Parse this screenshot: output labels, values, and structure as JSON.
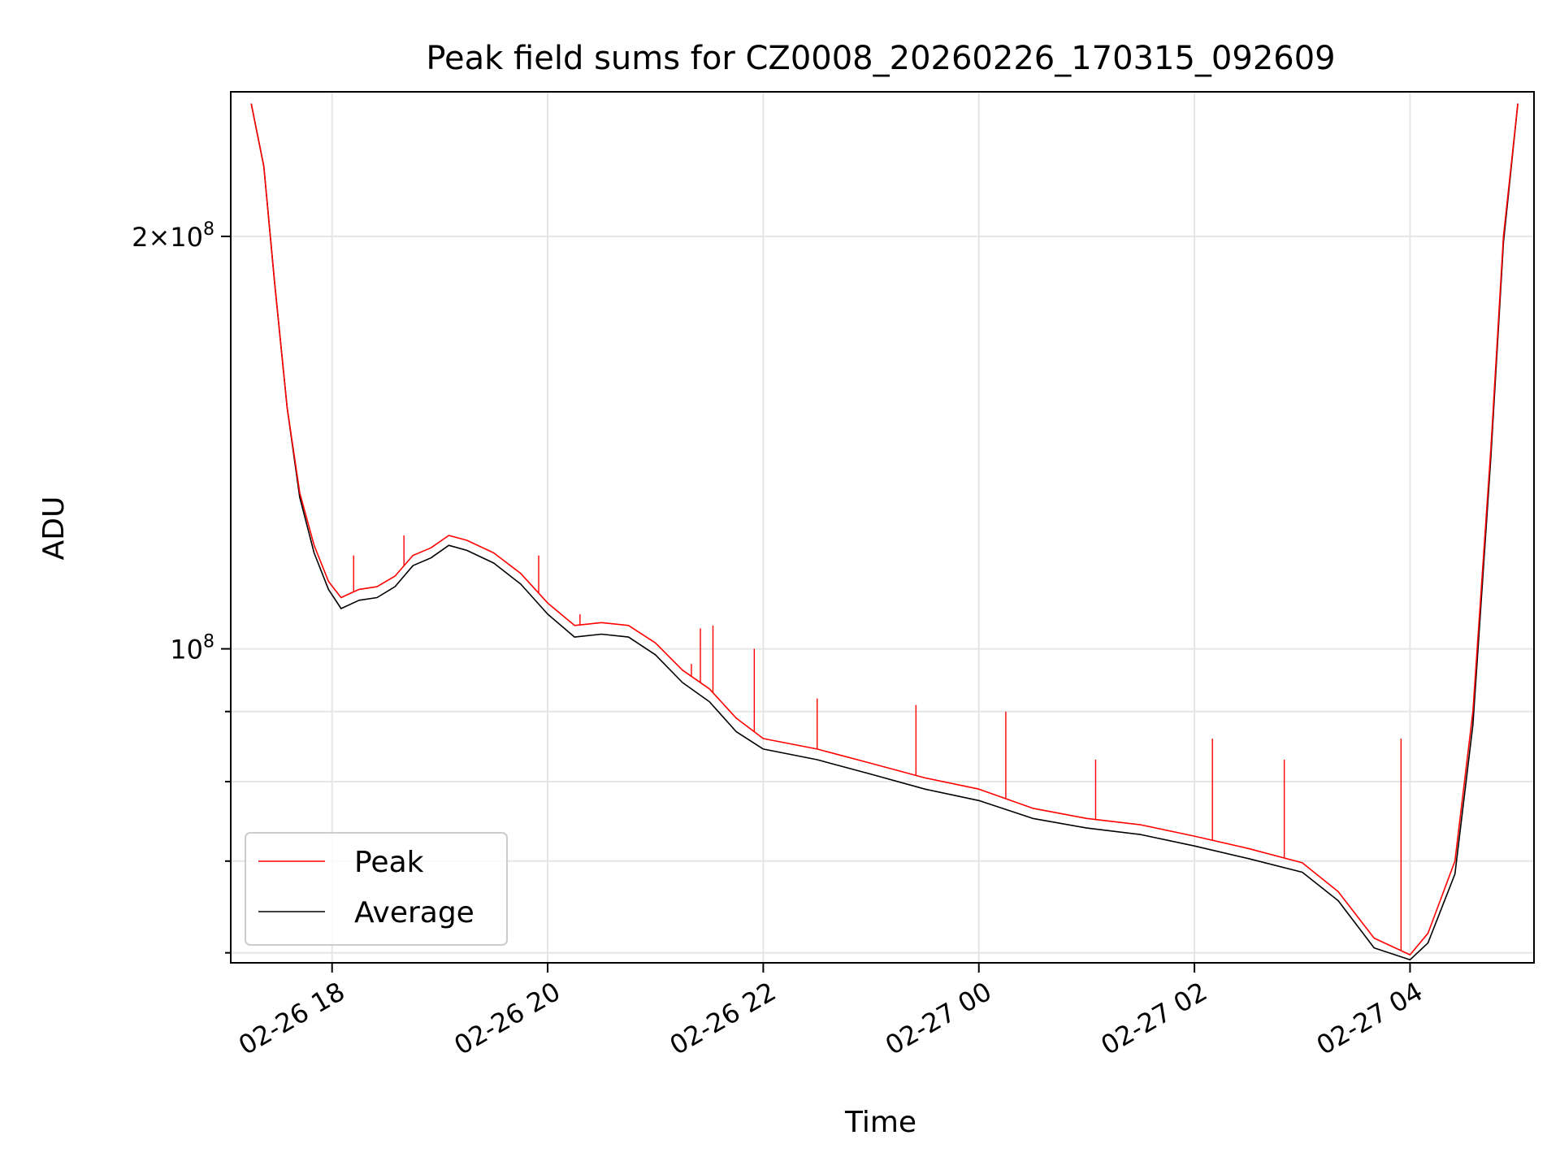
{
  "chart_data": {
    "type": "line",
    "title": "Peak field sums for CZ0008_20260226_170315_092609",
    "xlabel": "Time",
    "ylabel": "ADU",
    "yscale": "log",
    "ylim": [
      59000000,
      255000000
    ],
    "xlim_hours": [
      17.06,
      5.15
    ],
    "x_ticks": [
      "02-26 18",
      "02-26 20",
      "02-26 22",
      "02-27 00",
      "02-27 02",
      "02-27 04"
    ],
    "y_ticks": [
      {
        "value": 200000000,
        "base": "2×10",
        "exp": "8"
      },
      {
        "value": 100000000,
        "base": "10",
        "exp": "8"
      }
    ],
    "grid": true,
    "legend_position": "lower-left",
    "series": [
      {
        "name": "Peak",
        "color": "#ff0000",
        "points": [
          [
            "02-26 17:15",
            250000000
          ],
          [
            "02-26 17:22",
            225000000
          ],
          [
            "02-26 17:28",
            185000000
          ],
          [
            "02-26 17:35",
            150000000
          ],
          [
            "02-26 17:42",
            130000000
          ],
          [
            "02-26 17:50",
            119000000
          ],
          [
            "02-26 17:58",
            112000000
          ],
          [
            "02-26 18:05",
            109000000
          ],
          [
            "02-26 18:15",
            110500000
          ],
          [
            "02-26 18:25",
            111000000
          ],
          [
            "02-26 18:35",
            113000000
          ],
          [
            "02-26 18:45",
            117000000
          ],
          [
            "02-26 18:55",
            118500000
          ],
          [
            "02-26 19:05",
            121000000
          ],
          [
            "02-26 19:15",
            120000000
          ],
          [
            "02-26 19:30",
            117500000
          ],
          [
            "02-26 19:45",
            113500000
          ],
          [
            "02-26 20:00",
            108000000
          ],
          [
            "02-26 20:15",
            104000000
          ],
          [
            "02-26 20:30",
            104500000
          ],
          [
            "02-26 20:45",
            104000000
          ],
          [
            "02-26 21:00",
            101000000
          ],
          [
            "02-26 21:15",
            96500000
          ],
          [
            "02-26 21:30",
            93500000
          ],
          [
            "02-26 21:45",
            89000000
          ],
          [
            "02-26 22:00",
            86000000
          ],
          [
            "02-26 22:30",
            84500000
          ],
          [
            "02-26 23:00",
            82500000
          ],
          [
            "02-26 23:30",
            80500000
          ],
          [
            "02-27 00:00",
            79000000
          ],
          [
            "02-27 00:30",
            76500000
          ],
          [
            "02-27 01:00",
            75200000
          ],
          [
            "02-27 01:30",
            74400000
          ],
          [
            "02-27 02:00",
            73000000
          ],
          [
            "02-27 02:30",
            71500000
          ],
          [
            "02-27 03:00",
            69800000
          ],
          [
            "02-27 03:20",
            66500000
          ],
          [
            "02-27 03:40",
            61500000
          ],
          [
            "02-27 04:00",
            59800000
          ],
          [
            "02-27 04:10",
            62000000
          ],
          [
            "02-27 04:25",
            70000000
          ],
          [
            "02-27 04:35",
            90000000
          ],
          [
            "02-27 04:45",
            140000000
          ],
          [
            "02-27 04:52",
            200000000
          ],
          [
            "02-27 05:00",
            250000000
          ]
        ]
      },
      {
        "name": "Average",
        "color": "#000000",
        "points": [
          [
            "02-26 17:15",
            250000000
          ],
          [
            "02-26 17:22",
            225000000
          ],
          [
            "02-26 17:28",
            185000000
          ],
          [
            "02-26 17:35",
            150000000
          ],
          [
            "02-26 17:42",
            129000000
          ],
          [
            "02-26 17:50",
            117500000
          ],
          [
            "02-26 17:58",
            110500000
          ],
          [
            "02-26 18:05",
            107000000
          ],
          [
            "02-26 18:15",
            108500000
          ],
          [
            "02-26 18:25",
            109000000
          ],
          [
            "02-26 18:35",
            111000000
          ],
          [
            "02-26 18:45",
            115000000
          ],
          [
            "02-26 18:55",
            116500000
          ],
          [
            "02-26 19:05",
            119000000
          ],
          [
            "02-26 19:15",
            118000000
          ],
          [
            "02-26 19:30",
            115500000
          ],
          [
            "02-26 19:45",
            111500000
          ],
          [
            "02-26 20:00",
            106000000
          ],
          [
            "02-26 20:15",
            102000000
          ],
          [
            "02-26 20:30",
            102500000
          ],
          [
            "02-26 20:45",
            102000000
          ],
          [
            "02-26 21:00",
            99000000
          ],
          [
            "02-26 21:15",
            94500000
          ],
          [
            "02-26 21:30",
            91500000
          ],
          [
            "02-26 21:45",
            87000000
          ],
          [
            "02-26 22:00",
            84500000
          ],
          [
            "02-26 22:30",
            83000000
          ],
          [
            "02-26 23:00",
            81000000
          ],
          [
            "02-26 23:30",
            79000000
          ],
          [
            "02-27 00:00",
            77500000
          ],
          [
            "02-27 00:30",
            75200000
          ],
          [
            "02-27 01:00",
            74000000
          ],
          [
            "02-27 01:30",
            73200000
          ],
          [
            "02-27 02:00",
            71800000
          ],
          [
            "02-27 02:30",
            70300000
          ],
          [
            "02-27 03:00",
            68700000
          ],
          [
            "02-27 03:20",
            65500000
          ],
          [
            "02-27 03:40",
            60500000
          ],
          [
            "02-27 04:00",
            59300000
          ],
          [
            "02-27 04:10",
            61000000
          ],
          [
            "02-27 04:25",
            68500000
          ],
          [
            "02-27 04:35",
            88000000
          ],
          [
            "02-27 04:45",
            138000000
          ],
          [
            "02-27 04:52",
            198000000
          ],
          [
            "02-27 05:00",
            250000000
          ]
        ]
      }
    ],
    "spikes": [
      {
        "series": "Peak",
        "time": "02-26 18:12",
        "value": 117000000
      },
      {
        "series": "Peak",
        "time": "02-26 18:40",
        "value": 121000000
      },
      {
        "series": "Peak",
        "time": "02-26 19:55",
        "value": 117000000
      },
      {
        "series": "Peak",
        "time": "02-26 20:18",
        "value": 106000000
      },
      {
        "series": "Peak",
        "time": "02-26 21:20",
        "value": 97500000
      },
      {
        "series": "Peak",
        "time": "02-26 21:25",
        "value": 103500000
      },
      {
        "series": "Peak",
        "time": "02-26 21:32",
        "value": 104000000
      },
      {
        "series": "Peak",
        "time": "02-26 21:55",
        "value": 100000000
      },
      {
        "series": "Peak",
        "time": "02-26 22:30",
        "value": 92000000
      },
      {
        "series": "Peak",
        "time": "02-26 23:25",
        "value": 91000000
      },
      {
        "series": "Peak",
        "time": "02-27 00:15",
        "value": 90000000
      },
      {
        "series": "Peak",
        "time": "02-27 01:05",
        "value": 83000000
      },
      {
        "series": "Peak",
        "time": "02-27 02:10",
        "value": 86000000
      },
      {
        "series": "Peak",
        "time": "02-27 02:50",
        "value": 83000000
      },
      {
        "series": "Peak",
        "time": "02-27 03:55",
        "value": 86000000
      }
    ]
  },
  "legend": {
    "peak_label": "Peak",
    "average_label": "Average"
  }
}
